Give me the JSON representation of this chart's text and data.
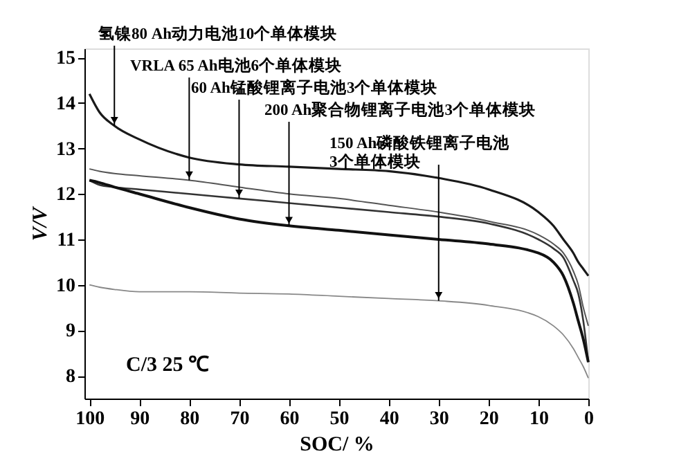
{
  "chart_data": {
    "type": "line",
    "xlabel": "SOC/ %",
    "ylabel": "V/V",
    "annotations": [
      "C/3 25 ℃"
    ],
    "xlim": [
      101,
      0
    ],
    "xticks": [
      100,
      90,
      80,
      70,
      60,
      50,
      40,
      30,
      20,
      10,
      0
    ],
    "ylim": [
      7.5,
      15.2
    ],
    "yticks": [
      8,
      9,
      10,
      11,
      12,
      13,
      14,
      15
    ],
    "grid": false,
    "legend": false,
    "marker": "none",
    "line_style": "solid",
    "x": [
      100,
      98,
      95,
      90,
      80,
      70,
      60,
      50,
      40,
      30,
      20,
      10,
      7,
      5,
      3,
      2,
      1,
      0
    ],
    "series": [
      {
        "name": "氢镍80 Ah动力电池10个单体模块",
        "color": "#1a1a1a",
        "values": [
          14.2,
          13.8,
          13.5,
          13.2,
          12.8,
          12.65,
          12.6,
          12.55,
          12.5,
          12.35,
          12.1,
          11.6,
          11.3,
          11.0,
          10.7,
          10.5,
          10.35,
          10.2
        ]
      },
      {
        "name": "VRLA 65 Ah电池6个单体模块",
        "color": "#555555",
        "values": [
          12.55,
          12.5,
          12.45,
          12.4,
          12.3,
          12.15,
          12.0,
          11.9,
          11.75,
          11.6,
          11.4,
          11.1,
          10.9,
          10.7,
          10.3,
          10.0,
          9.5,
          9.1
        ]
      },
      {
        "name": "60 Ah锰酸锂离子电池3个单体模块",
        "color": "#333333",
        "values": [
          12.3,
          12.2,
          12.15,
          12.1,
          12.0,
          11.9,
          11.8,
          11.7,
          11.6,
          11.5,
          11.35,
          11.0,
          10.8,
          10.6,
          10.1,
          9.8,
          9.2,
          8.3
        ]
      },
      {
        "name": "200 Ah聚合物锂离子电池3个单体模块",
        "color": "#111111",
        "values": [
          12.3,
          12.25,
          12.15,
          12.0,
          11.7,
          11.45,
          11.3,
          11.2,
          11.1,
          11.0,
          10.9,
          10.7,
          10.5,
          10.2,
          9.6,
          9.2,
          8.8,
          8.3
        ]
      },
      {
        "name": "150 Ah磷酸铁锂离子电池\n3个单体模块",
        "color": "#888888",
        "values": [
          10.0,
          9.95,
          9.9,
          9.85,
          9.85,
          9.82,
          9.8,
          9.75,
          9.7,
          9.65,
          9.55,
          9.3,
          9.1,
          8.9,
          8.6,
          8.4,
          8.2,
          7.95
        ]
      }
    ]
  }
}
